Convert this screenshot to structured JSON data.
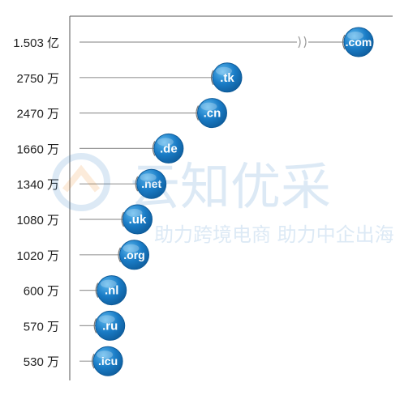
{
  "chart_data": {
    "type": "bar",
    "title": "",
    "xlabel": "",
    "ylabel": "",
    "categories": [
      ".com",
      ".tk",
      ".cn",
      ".de",
      ".net",
      ".uk",
      ".org",
      ".nl",
      ".ru",
      ".icu"
    ],
    "value_labels": [
      "1.503 亿",
      "2750 万",
      "2470 万",
      "1660 万",
      "1340 万",
      "1080 万",
      "1020 万",
      "600 万",
      "570 万",
      "530 万"
    ],
    "values": [
      150300000,
      27500000,
      24700000,
      16600000,
      13400000,
      10800000,
      10200000,
      6000000,
      5700000,
      5300000
    ],
    "axis_break_on": ".com",
    "grid": false,
    "colors": {
      "bubble": "#1677c4",
      "bubble_light": "#43a7e6",
      "line": "#9a9a9a",
      "axis": "#555555",
      "label": "#222222"
    }
  },
  "watermark": {
    "brand": "云知优采",
    "slogan": "助力跨境电商 助力中企出海",
    "colors": {
      "orange": "#f08a20",
      "blue": "#2a7bc4"
    }
  }
}
